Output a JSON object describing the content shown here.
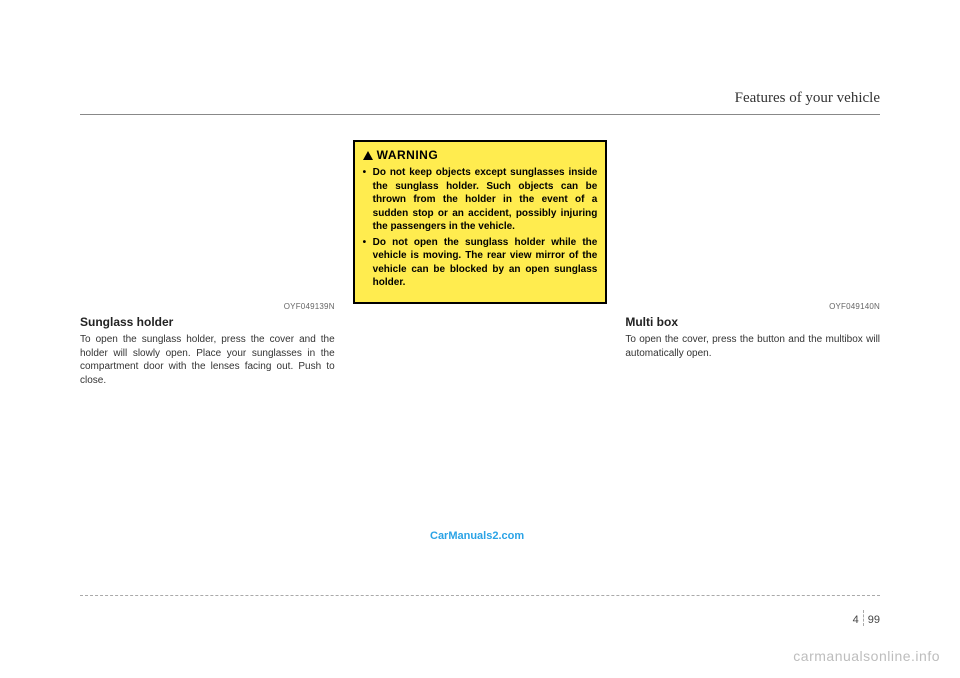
{
  "header": {
    "title": "Features of your vehicle"
  },
  "col1": {
    "img_code": "OYF049139N",
    "title": "Sunglass holder",
    "body": "To open the sunglass holder, press the cover and the holder will slowly open. Place your sunglasses in the compartment door with the lenses facing out. Push to close."
  },
  "col2": {
    "warning_label": "WARNING",
    "warn1": "Do not keep objects except sunglasses inside the sunglass holder. Such objects can be thrown from the holder in the event of a sudden stop or an accident, possibly injuring the passengers in the vehicle.",
    "warn2": "Do not open the sunglass holder while the vehicle is moving. The rear view mirror of the vehicle can be blocked by an open sunglass holder."
  },
  "col3": {
    "img_code": "OYF049140N",
    "title": "Multi box",
    "body": "To open the cover, press the button and the multibox will automatically open."
  },
  "watermark_link": "CarManuals2.com",
  "footer": {
    "section": "4",
    "page": "99"
  },
  "bottom_watermark": "carmanualsonline.info"
}
